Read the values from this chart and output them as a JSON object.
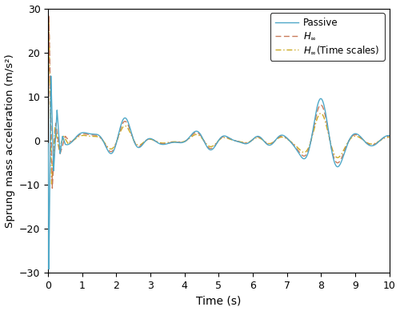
{
  "title": "",
  "xlabel": "Time (s)",
  "ylabel": "Sprung mass acceleration (m/s²)",
  "xlim": [
    0,
    10
  ],
  "ylim": [
    -30,
    30
  ],
  "xticks": [
    0,
    1,
    2,
    3,
    4,
    5,
    6,
    7,
    8,
    9,
    10
  ],
  "yticks": [
    -30,
    -20,
    -10,
    0,
    10,
    20,
    30
  ],
  "passive_color": "#4EA8C8",
  "hinf_color": "#C97B5A",
  "hinf_ts_color": "#CCAA22",
  "legend_labels": [
    "Passive",
    "$H_\\infty$",
    "$H_\\infty$(Time scales)"
  ],
  "figsize": [
    5.0,
    3.89
  ],
  "dpi": 100
}
